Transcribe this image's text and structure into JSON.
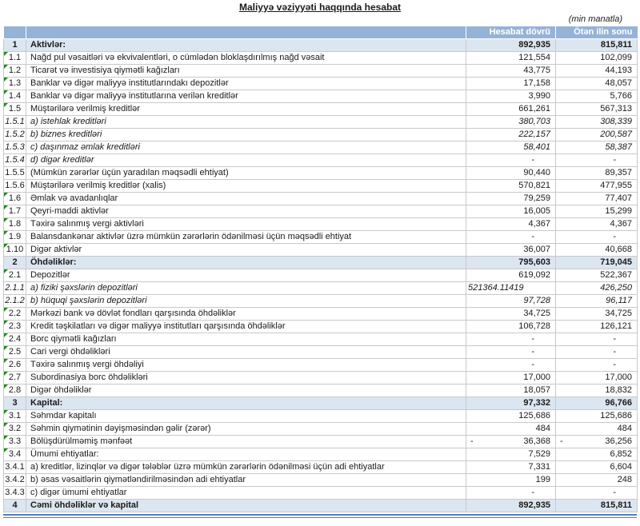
{
  "meta": {
    "title": "Maliyyə vəziyyəti haqqında hesabat",
    "unit_note": "(min manatla)"
  },
  "theme": {
    "header_bg": "#95B3D7",
    "header_text": "#FFFFFF",
    "section_row_bg": "#DCE6F1",
    "grid_border": "#C9C9C9",
    "error_flag": "#1E8C1E",
    "bottom_double_line": "#4F81BD"
  },
  "table": {
    "header": {
      "current": "Hesabat dövrü",
      "previous": "Ötən ilin sonu"
    },
    "rows": [
      {
        "no": "1",
        "label": "Aktivlər:",
        "current": "892,935",
        "previous": "815,811",
        "style": "section",
        "flag": false
      },
      {
        "no": "1.1",
        "label": "Nağd pul vəsaitləri və  ekvivalentləri, o cümlədən bloklaşdırılmış nağd vəsait",
        "current": "121,554",
        "previous": "102,099",
        "style": "normal",
        "flag": true
      },
      {
        "no": "1.2",
        "label": "Ticarət və investisiya qiymətli kağızları",
        "current": "43,775",
        "previous": "44,193",
        "style": "normal",
        "flag": true
      },
      {
        "no": "1.3",
        "label": "Banklar və digər maliyyə institutlarındakı depozitlər",
        "current": "17,158",
        "previous": "48,057",
        "style": "normal",
        "flag": true
      },
      {
        "no": "1.4",
        "label": "Banklar və digər maliyyə institutlarına verilən kreditlər",
        "current": "3,990",
        "previous": "5,766",
        "style": "normal",
        "flag": true
      },
      {
        "no": "1.5",
        "label": "Müştərilərə verilmiş kreditlər",
        "current": "661,261",
        "previous": "567,313",
        "style": "normal",
        "flag": true
      },
      {
        "no": "1.5.1",
        "label": "a) istehlak kreditləri",
        "current": "380,703",
        "previous": "308,339",
        "style": "sub-italic",
        "flag": false
      },
      {
        "no": "1.5.2",
        "label": "b) biznes kreditləri",
        "current": "222,157",
        "previous": "200,587",
        "style": "sub-italic",
        "flag": false
      },
      {
        "no": "1.5.3",
        "label": "c) daşınmaz əmlak kreditləri",
        "current": "58,401",
        "previous": "58,387",
        "style": "sub-italic",
        "flag": false
      },
      {
        "no": "1.5.4",
        "label": "d) digər kreditlər",
        "current": "-",
        "previous": "-",
        "style": "sub-italic",
        "flag": false
      },
      {
        "no": "1.5.5",
        "label": "(Mümkün zərərlər üçün yaradılan məqsədli ehtiyat)",
        "current": "90,440",
        "previous": "89,357",
        "style": "normal",
        "flag": false
      },
      {
        "no": "1.5.6",
        "label": "Müştərilərə verilmiş kreditlər (xalis)",
        "current": "570,821",
        "previous": "477,955",
        "style": "normal",
        "flag": false
      },
      {
        "no": "1.6",
        "label": "Əmlak və avadanlıqlar",
        "current": "79,259",
        "previous": "77,407",
        "style": "normal",
        "flag": true
      },
      {
        "no": "1.7",
        "label": "Qeyri-maddi aktivlər",
        "current": "16,005",
        "previous": "15,299",
        "style": "normal",
        "flag": true
      },
      {
        "no": "1.8",
        "label": "Təxirə salınmış vergi aktivləri",
        "current": "4,367",
        "previous": "4,367",
        "style": "normal",
        "flag": true
      },
      {
        "no": "1.9",
        "label": "Balansdankənar aktivlər üzrə mümkün zərərlərin ödənilməsi üçün məqsədli ehtiyat",
        "current": "-",
        "previous": "-",
        "style": "normal",
        "flag": true
      },
      {
        "no": "1.10",
        "label": "Digər aktivlər",
        "current": "36,007",
        "previous": "40,668",
        "style": "normal",
        "flag": true
      },
      {
        "no": "2",
        "label": "Öhdəliklər:",
        "current": "795,603",
        "previous": "719,045",
        "style": "section",
        "flag": false
      },
      {
        "no": "2.1",
        "label": "Depozitlər",
        "current": "619,092",
        "previous": "522,367",
        "style": "normal",
        "flag": true
      },
      {
        "no": "2.1.1",
        "label": "a) fiziki şəxslərin depozitləri",
        "current": "521364.11419",
        "previous": "426,250",
        "style": "sub-italic",
        "flag": false,
        "current_align": "left"
      },
      {
        "no": "2.1.2",
        "label": "b) hüquqi şəxslərin depozitləri",
        "current": "97,728",
        "previous": "96,117",
        "style": "sub-italic",
        "flag": false
      },
      {
        "no": "2.2",
        "label": "Mərkəzi bank və dövlət fondları qarşısında öhdəliklər",
        "current": "34,725",
        "previous": "34,725",
        "style": "normal",
        "flag": true
      },
      {
        "no": "2.3",
        "label": "Kredit təşkilatları və digər maliyyə institutları qarşısında öhdəliklər",
        "current": "106,728",
        "previous": "126,121",
        "style": "normal",
        "flag": true
      },
      {
        "no": "2.4",
        "label": "Borc qiymətli kağızları",
        "current": "-",
        "previous": "-",
        "style": "normal",
        "flag": true
      },
      {
        "no": "2.5",
        "label": "Cari vergi öhdəlikləri",
        "current": "-",
        "previous": "-",
        "style": "normal",
        "flag": true
      },
      {
        "no": "2.6",
        "label": "Təxirə salınmış vergi öhdəliyi",
        "current": "-",
        "previous": "-",
        "style": "normal",
        "flag": true
      },
      {
        "no": "2.7",
        "label": "Subordinasiya borc öhdəlikləri",
        "current": "17,000",
        "previous": "17,000",
        "style": "normal",
        "flag": true
      },
      {
        "no": "2.8",
        "label": "Digər öhdəliklər",
        "current": "18,057",
        "previous": "18,832",
        "style": "normal",
        "flag": true
      },
      {
        "no": "3",
        "label": "Kapital:",
        "current": "97,332",
        "previous": "96,766",
        "style": "section",
        "flag": false
      },
      {
        "no": "3.1",
        "label": "Səhmdar kapitalı",
        "current": "125,686",
        "previous": "125,686",
        "style": "normal",
        "flag": true
      },
      {
        "no": "3.2",
        "label": "Səhmin qiymətinin dəyişməsindən gəlir (zərər)",
        "current": "484",
        "previous": "484",
        "style": "normal",
        "flag": true
      },
      {
        "no": "3.3",
        "label": "Bölüşdürülməmiş mənfəət",
        "current": "36,368",
        "previous": "36,256",
        "style": "normal",
        "flag": true,
        "negative": true
      },
      {
        "no": "3.4",
        "label": "Ümumi ehtiyatlar:",
        "current": "7,529",
        "previous": "6,852",
        "style": "normal",
        "flag": true
      },
      {
        "no": "3.4.1",
        "label": "a) kreditlər, lizinqlər və digər tələblər üzrə mümkün zərərlərin ödənilməsi üçün adi ehtiyatlar",
        "current": "7,331",
        "previous": "6,604",
        "style": "normal",
        "flag": false
      },
      {
        "no": "3.4.2",
        "label": "b) əsas vəsaitlərin qiymətləndirilməsindən adi ehtiyatlar",
        "current": "199",
        "previous": "248",
        "style": "normal",
        "flag": false
      },
      {
        "no": "3.4.3",
        "label": "c) digər ümumi ehtiyatlar",
        "current": "-",
        "previous": "-",
        "style": "normal",
        "flag": false
      },
      {
        "no": "4",
        "label": "Cəmi öhdəliklər və kapital",
        "current": "892,935",
        "previous": "815,811",
        "style": "section",
        "flag": false
      }
    ]
  }
}
